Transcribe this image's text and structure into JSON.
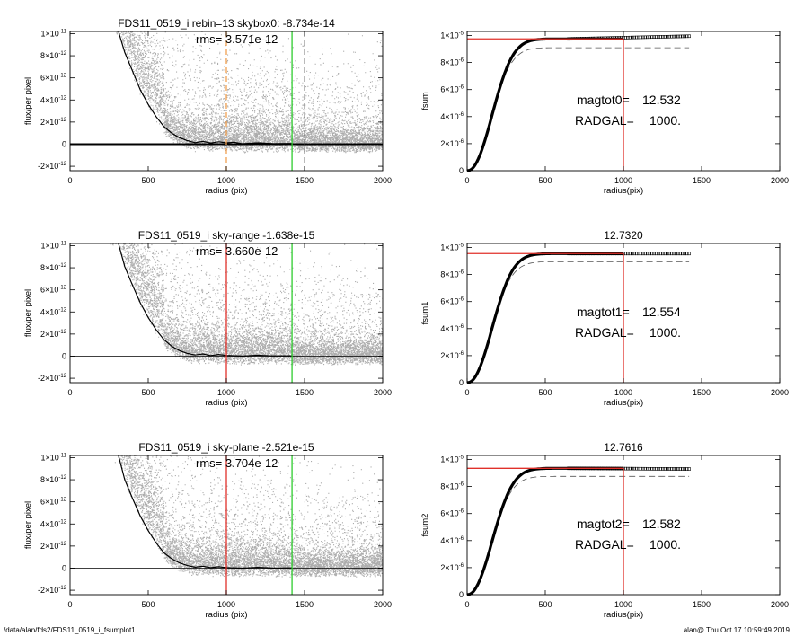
{
  "footer": {
    "path": "/data/alan/fds2/FDS11_0519_i_fsumplot1",
    "stamp": "alan@  Thu Oct 17 10:59:49 2019"
  },
  "colors": {
    "scatter": "#9e9e9e",
    "red": "#e0302a",
    "green": "#2ecc2e",
    "orange": "#f0a050",
    "curve": "#000000",
    "dashed": "#555555"
  },
  "chart_data": [
    {
      "id": "left1",
      "type": "scatter",
      "title": "FDS11_0519_i rebin=13    skybox0: -8.734e-14",
      "annotation": "rms= 3.571e-12",
      "xlabel": "radius (pix)",
      "ylabel": "flux/per pixel",
      "xlim": [
        0,
        2000
      ],
      "ylim": [
        -2.4e-12,
        1.02e-11
      ],
      "xticks": [
        0,
        500,
        1000,
        1500,
        2000
      ],
      "yticks": [
        {
          "v": -2e-12,
          "m": "-2×10",
          "e": "-12"
        },
        {
          "v": 0,
          "m": "0",
          "e": ""
        },
        {
          "v": 2e-12,
          "m": "2×10",
          "e": "-12"
        },
        {
          "v": 4e-12,
          "m": "4×10",
          "e": "-12"
        },
        {
          "v": 6e-12,
          "m": "6×10",
          "e": "-12"
        },
        {
          "v": 8e-12,
          "m": "8×10",
          "e": "-12"
        },
        {
          "v": 1e-11,
          "m": "1×10",
          "e": "-11"
        }
      ],
      "vlines": [
        {
          "x": 1000,
          "color": "orange",
          "dashed": true
        },
        {
          "x": 1420,
          "color": "green",
          "dashed": false
        },
        {
          "x": 1500,
          "color": "dashed",
          "dashed": true
        }
      ],
      "profile": [
        [
          310,
          1.02e-11
        ],
        [
          350,
          8.3e-12
        ],
        [
          400,
          6.6e-12
        ],
        [
          450,
          4.9e-12
        ],
        [
          500,
          3.6e-12
        ],
        [
          550,
          2.5e-12
        ],
        [
          600,
          1.6e-12
        ],
        [
          650,
          1e-12
        ],
        [
          700,
          5.8e-13
        ],
        [
          750,
          3.2e-13
        ],
        [
          800,
          1.4e-13
        ],
        [
          850,
          2.5e-13
        ],
        [
          900,
          1e-13
        ],
        [
          950,
          2.2e-13
        ],
        [
          1000,
          1.2e-13
        ],
        [
          1050,
          1.8e-13
        ],
        [
          1100,
          4e-14
        ],
        [
          1200,
          1.2e-13
        ],
        [
          1300,
          5e-14
        ],
        [
          1420,
          6e-14
        ]
      ]
    },
    {
      "id": "left2",
      "type": "scatter",
      "title": "FDS11_0519_i sky-range -1.638e-15",
      "annotation": "rms= 3.660e-12",
      "xlabel": "radius (pix)",
      "ylabel": "flux/per pixel",
      "xlim": [
        0,
        2000
      ],
      "ylim": [
        -2.4e-12,
        1.02e-11
      ],
      "xticks": [
        0,
        500,
        1000,
        1500,
        2000
      ],
      "yticks": [
        {
          "v": -2e-12,
          "m": "-2×10",
          "e": "-12"
        },
        {
          "v": 0,
          "m": "0",
          "e": ""
        },
        {
          "v": 2e-12,
          "m": "2×10",
          "e": "-12"
        },
        {
          "v": 4e-12,
          "m": "4×10",
          "e": "-12"
        },
        {
          "v": 6e-12,
          "m": "6×10",
          "e": "-12"
        },
        {
          "v": 8e-12,
          "m": "8×10",
          "e": "-12"
        },
        {
          "v": 1e-11,
          "m": "1×10",
          "e": "-11"
        }
      ],
      "vlines": [
        {
          "x": 1000,
          "color": "red",
          "dashed": false
        },
        {
          "x": 1420,
          "color": "green",
          "dashed": false
        }
      ],
      "profile": [
        [
          310,
          1.02e-11
        ],
        [
          350,
          8.1e-12
        ],
        [
          400,
          6.4e-12
        ],
        [
          450,
          4.8e-12
        ],
        [
          500,
          3.5e-12
        ],
        [
          550,
          2.4e-12
        ],
        [
          600,
          1.5e-12
        ],
        [
          650,
          9e-13
        ],
        [
          700,
          5e-13
        ],
        [
          750,
          2.5e-13
        ],
        [
          800,
          1e-13
        ],
        [
          850,
          2e-13
        ],
        [
          900,
          5e-14
        ],
        [
          950,
          1.5e-13
        ],
        [
          1000,
          6e-14
        ],
        [
          1100,
          1e-14
        ],
        [
          1200,
          8e-14
        ],
        [
          1300,
          2e-14
        ],
        [
          1420,
          3e-14
        ]
      ]
    },
    {
      "id": "left3",
      "type": "scatter",
      "title": "FDS11_0519_i sky-plane -2.521e-15",
      "annotation": "rms= 3.704e-12",
      "xlabel": "radius (pix)",
      "ylabel": "flux/per pixel",
      "xlim": [
        0,
        2000
      ],
      "ylim": [
        -2.4e-12,
        1.02e-11
      ],
      "xticks": [
        0,
        500,
        1000,
        1500,
        2000
      ],
      "yticks": [
        {
          "v": -2e-12,
          "m": "-2×10",
          "e": "-12"
        },
        {
          "v": 0,
          "m": "0",
          "e": ""
        },
        {
          "v": 2e-12,
          "m": "2×10",
          "e": "-12"
        },
        {
          "v": 4e-12,
          "m": "4×10",
          "e": "-12"
        },
        {
          "v": 6e-12,
          "m": "6×10",
          "e": "-12"
        },
        {
          "v": 8e-12,
          "m": "8×10",
          "e": "-12"
        },
        {
          "v": 1e-11,
          "m": "1×10",
          "e": "-11"
        }
      ],
      "vlines": [
        {
          "x": 1000,
          "color": "red",
          "dashed": false
        },
        {
          "x": 1420,
          "color": "green",
          "dashed": false
        }
      ],
      "profile": [
        [
          310,
          1.02e-11
        ],
        [
          350,
          8e-12
        ],
        [
          400,
          6.3e-12
        ],
        [
          450,
          4.7e-12
        ],
        [
          500,
          3.4e-12
        ],
        [
          550,
          2.3e-12
        ],
        [
          600,
          1.4e-12
        ],
        [
          650,
          8.5e-13
        ],
        [
          700,
          4.8e-13
        ],
        [
          750,
          2.3e-13
        ],
        [
          800,
          9e-14
        ],
        [
          850,
          1.8e-13
        ],
        [
          900,
          4e-14
        ],
        [
          950,
          1.3e-13
        ],
        [
          1000,
          5e-14
        ],
        [
          1100,
          0
        ],
        [
          1200,
          7e-14
        ],
        [
          1300,
          1e-14
        ],
        [
          1420,
          2e-14
        ]
      ]
    },
    {
      "id": "right1",
      "type": "line",
      "title": "",
      "xlabel": "radius(pix)",
      "ylabel": "fsum",
      "xlim": [
        0,
        2000
      ],
      "ylim": [
        0,
        1.03e-05
      ],
      "xticks": [
        0,
        500,
        1000,
        1500,
        2000
      ],
      "yticks": [
        {
          "v": 0,
          "m": "0",
          "e": ""
        },
        {
          "v": 2e-06,
          "m": "2×10",
          "e": "-6"
        },
        {
          "v": 4e-06,
          "m": "4×10",
          "e": "-6"
        },
        {
          "v": 6e-06,
          "m": "6×10",
          "e": "-6"
        },
        {
          "v": 8e-06,
          "m": "8×10",
          "e": "-6"
        },
        {
          "v": 1e-05,
          "m": "1×10",
          "e": "-5"
        }
      ],
      "mag_label": "magtot0=",
      "mag_value": "12.532",
      "radgal_label": "RADGAL=",
      "radgal_value": "1000.",
      "ftot": 9.75e-06,
      "final": 9.95e-06,
      "dash_final": 9.1e-06,
      "rmax": 1420,
      "radgal": 1000
    },
    {
      "id": "right2",
      "type": "line",
      "title": "12.7320",
      "xlabel": "radius(pix)",
      "ylabel": "fsum1",
      "xlim": [
        0,
        2000
      ],
      "ylim": [
        0,
        1.03e-05
      ],
      "xticks": [
        0,
        500,
        1000,
        1500,
        2000
      ],
      "yticks": [
        {
          "v": 0,
          "m": "0",
          "e": ""
        },
        {
          "v": 2e-06,
          "m": "2×10",
          "e": "-6"
        },
        {
          "v": 4e-06,
          "m": "4×10",
          "e": "-6"
        },
        {
          "v": 6e-06,
          "m": "6×10",
          "e": "-6"
        },
        {
          "v": 8e-06,
          "m": "8×10",
          "e": "-6"
        },
        {
          "v": 1e-05,
          "m": "1×10",
          "e": "-5"
        }
      ],
      "mag_label": "magtot1=",
      "mag_value": "12.554",
      "radgal_label": "RADGAL=",
      "radgal_value": "1000.",
      "ftot": 9.55e-06,
      "final": 9.55e-06,
      "dash_final": 8.95e-06,
      "rmax": 1420,
      "radgal": 1000
    },
    {
      "id": "right3",
      "type": "line",
      "title": "12.7616",
      "xlabel": "radius(pix)",
      "ylabel": "fsum2",
      "xlim": [
        0,
        2000
      ],
      "ylim": [
        0,
        1.03e-05
      ],
      "xticks": [
        0,
        500,
        1000,
        1500,
        2000
      ],
      "yticks": [
        {
          "v": 0,
          "m": "0",
          "e": ""
        },
        {
          "v": 2e-06,
          "m": "2×10",
          "e": "-6"
        },
        {
          "v": 4e-06,
          "m": "4×10",
          "e": "-6"
        },
        {
          "v": 6e-06,
          "m": "6×10",
          "e": "-6"
        },
        {
          "v": 8e-06,
          "m": "8×10",
          "e": "-6"
        },
        {
          "v": 1e-05,
          "m": "1×10",
          "e": "-5"
        }
      ],
      "mag_label": "magtot2=",
      "mag_value": "12.582",
      "radgal_label": "RADGAL=",
      "radgal_value": "1000.",
      "ftot": 9.35e-06,
      "final": 9.3e-06,
      "dash_final": 8.75e-06,
      "rmax": 1420,
      "radgal": 1000
    }
  ]
}
